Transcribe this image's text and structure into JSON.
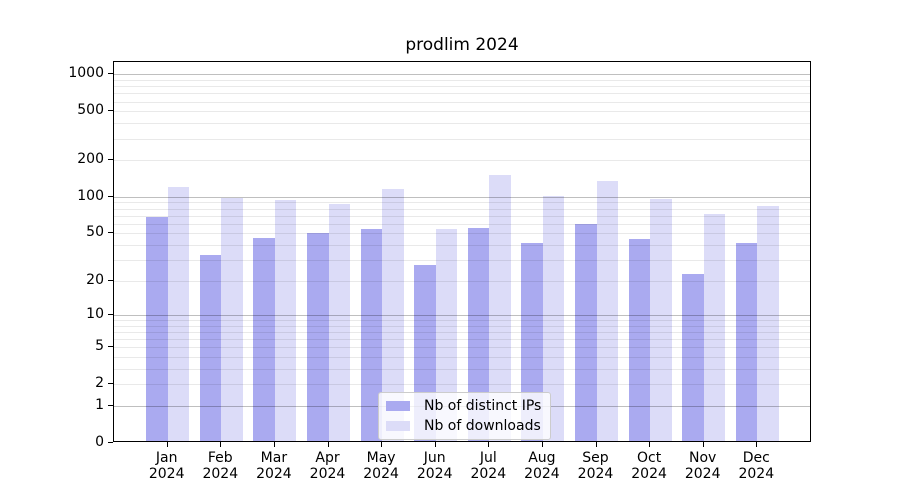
{
  "chart_data": {
    "type": "bar",
    "title": "prodlim 2024",
    "categories": [
      "Jan 2024",
      "Feb 2024",
      "Mar 2024",
      "Apr 2024",
      "May 2024",
      "Jun 2024",
      "Jul 2024",
      "Aug 2024",
      "Sep 2024",
      "Oct 2024",
      "Nov 2024",
      "Dec 2024"
    ],
    "series": [
      {
        "name": "Nb of distinct IPs",
        "color": "#aaaaf0",
        "values": [
          66,
          32,
          44,
          48,
          52,
          26,
          53,
          40,
          58,
          43,
          22,
          40
        ]
      },
      {
        "name": "Nb of downloads",
        "color": "#dcdcf8",
        "values": [
          115,
          95,
          90,
          84,
          112,
          52,
          146,
          97,
          130,
          93,
          69,
          81
        ]
      }
    ],
    "xlabel": "",
    "ylabel": "",
    "yscale": "log1p",
    "ytick_labels": [
      "1000",
      "500",
      "200",
      "100",
      "50",
      "20",
      "10",
      "5",
      "2",
      "1",
      "0"
    ],
    "ytick_values": [
      1000,
      500,
      200,
      100,
      50,
      20,
      10,
      5,
      2,
      1,
      0
    ],
    "grid": {
      "major_values": [
        1,
        10,
        100,
        1000
      ],
      "minor_values": [
        2,
        3,
        4,
        5,
        6,
        7,
        8,
        9,
        20,
        30,
        40,
        50,
        60,
        70,
        80,
        90,
        200,
        300,
        400,
        500,
        600,
        700,
        800,
        900
      ]
    },
    "legend_position": "inside-bottom-center",
    "colors": {
      "axis": "#000000",
      "grid_major": "#bfbfbf",
      "grid_minor": "#e9e9e9",
      "background": "#ffffff"
    }
  }
}
